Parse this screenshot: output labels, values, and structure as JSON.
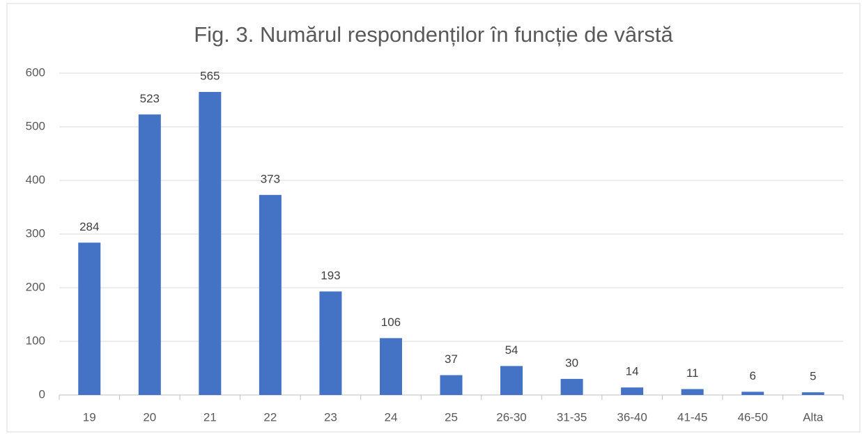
{
  "chart_data": {
    "type": "bar",
    "title": "Fig. 3. Numărul respondenților în funcție de vârstă",
    "categories": [
      "19",
      "20",
      "21",
      "22",
      "23",
      "24",
      "25",
      "26-30",
      "31-35",
      "36-40",
      "41-45",
      "46-50",
      "Alta"
    ],
    "values": [
      284,
      523,
      565,
      373,
      193,
      106,
      37,
      54,
      30,
      14,
      11,
      6,
      5
    ],
    "color": "#4472c4",
    "ylim": [
      0,
      600
    ],
    "yticks": [
      0,
      100,
      200,
      300,
      400,
      500,
      600
    ],
    "grid": true
  }
}
